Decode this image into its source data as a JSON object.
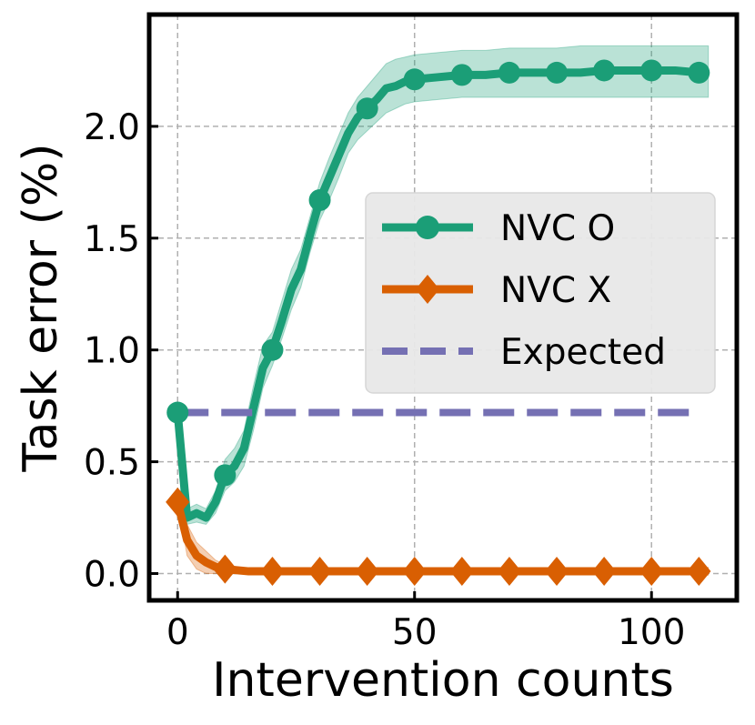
{
  "chart_data": {
    "type": "line",
    "title": "",
    "xlabel": "Intervention counts",
    "ylabel": "Task error (%)",
    "xlim": [
      -6,
      118
    ],
    "ylim": [
      -0.12,
      2.5
    ],
    "xticks": [
      0,
      50,
      100
    ],
    "xtick_labels": [
      "0",
      "50",
      "100"
    ],
    "yticks": [
      0.0,
      0.5,
      1.0,
      1.5,
      2.0
    ],
    "ytick_labels": [
      "0.0",
      "0.5",
      "1.0",
      "1.5",
      "2.0"
    ],
    "grid": true,
    "legend_position": "center-right",
    "series": [
      {
        "name": "NVC O",
        "color": "#1b9e77",
        "marker": "circle",
        "x": [
          0,
          2,
          4,
          6,
          8,
          10,
          12,
          14,
          16,
          18,
          20,
          22,
          24,
          26,
          28,
          30,
          32,
          34,
          36,
          38,
          40,
          42,
          44,
          46,
          48,
          50,
          55,
          60,
          65,
          70,
          75,
          80,
          85,
          90,
          95,
          100,
          105,
          110,
          112
        ],
        "y": [
          0.72,
          0.25,
          0.27,
          0.25,
          0.32,
          0.44,
          0.48,
          0.56,
          0.74,
          0.92,
          1.0,
          1.13,
          1.27,
          1.36,
          1.52,
          1.67,
          1.77,
          1.87,
          1.97,
          2.04,
          2.08,
          2.12,
          2.17,
          2.18,
          2.2,
          2.21,
          2.22,
          2.23,
          2.23,
          2.24,
          2.24,
          2.24,
          2.24,
          2.25,
          2.25,
          2.25,
          2.25,
          2.24,
          2.24
        ],
        "lower": [
          0.72,
          0.22,
          0.23,
          0.22,
          0.27,
          0.37,
          0.41,
          0.48,
          0.64,
          0.83,
          0.93,
          1.05,
          1.18,
          1.28,
          1.44,
          1.58,
          1.67,
          1.77,
          1.88,
          1.94,
          1.98,
          2.02,
          2.06,
          2.08,
          2.1,
          2.11,
          2.12,
          2.13,
          2.13,
          2.13,
          2.13,
          2.13,
          2.13,
          2.13,
          2.13,
          2.13,
          2.13,
          2.13,
          2.13
        ],
        "upper": [
          0.72,
          0.29,
          0.31,
          0.29,
          0.37,
          0.51,
          0.56,
          0.64,
          0.84,
          1.02,
          1.08,
          1.22,
          1.36,
          1.45,
          1.6,
          1.75,
          1.86,
          1.96,
          2.06,
          2.13,
          2.18,
          2.23,
          2.28,
          2.3,
          2.31,
          2.32,
          2.33,
          2.34,
          2.34,
          2.35,
          2.35,
          2.35,
          2.36,
          2.36,
          2.36,
          2.36,
          2.36,
          2.36,
          2.36
        ],
        "marker_x": [
          0,
          10,
          20,
          30,
          40,
          50,
          60,
          70,
          80,
          90,
          100,
          110
        ]
      },
      {
        "name": "NVC X",
        "color": "#d95f02",
        "marker": "diamond",
        "x": [
          0,
          2,
          4,
          6,
          8,
          10,
          15,
          20,
          30,
          40,
          50,
          60,
          70,
          80,
          90,
          100,
          110,
          112
        ],
        "y": [
          0.32,
          0.15,
          0.08,
          0.05,
          0.03,
          0.02,
          0.01,
          0.01,
          0.01,
          0.01,
          0.01,
          0.01,
          0.01,
          0.01,
          0.01,
          0.01,
          0.01,
          0.01
        ],
        "lower": [
          0.32,
          0.08,
          0.02,
          0.0,
          0.0,
          0.0,
          0.0,
          0.0,
          0.0,
          0.0,
          0.0,
          0.0,
          0.0,
          0.0,
          0.0,
          0.0,
          0.0,
          0.0
        ],
        "upper": [
          0.32,
          0.22,
          0.14,
          0.1,
          0.06,
          0.04,
          0.02,
          0.02,
          0.02,
          0.02,
          0.02,
          0.02,
          0.02,
          0.02,
          0.02,
          0.02,
          0.02,
          0.02
        ],
        "marker_x": [
          0,
          10,
          20,
          30,
          40,
          50,
          60,
          70,
          80,
          90,
          100,
          110
        ]
      },
      {
        "name": "Expected",
        "color": "#7570b3",
        "marker": "none",
        "style": "dashed",
        "x": [
          0,
          110
        ],
        "y": [
          0.72,
          0.72
        ]
      }
    ]
  }
}
